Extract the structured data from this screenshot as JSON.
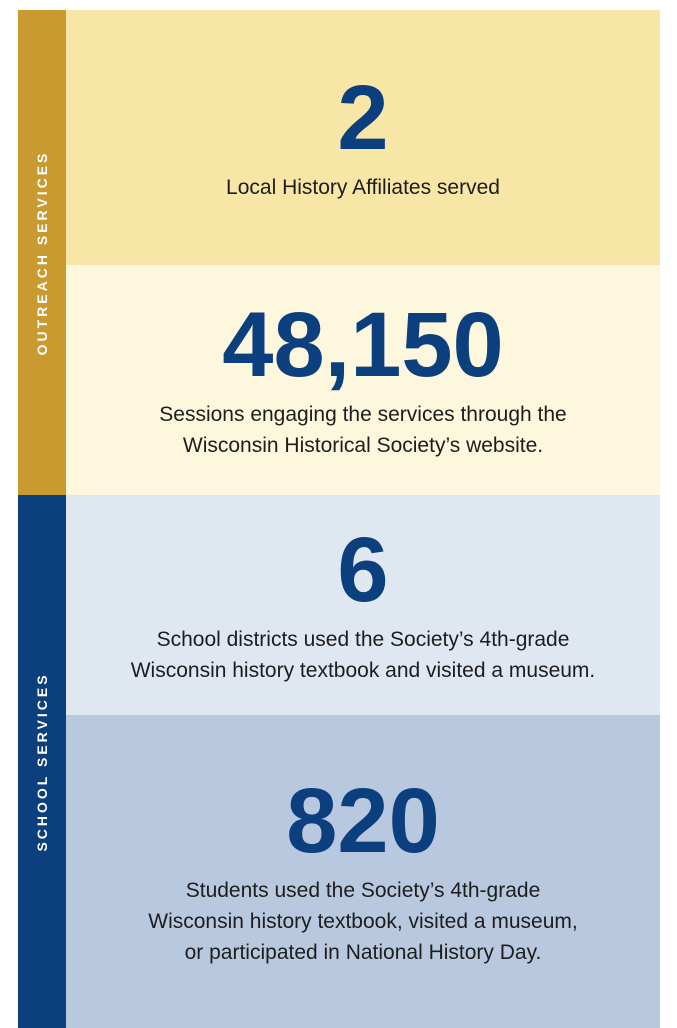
{
  "sections": [
    {
      "label": "OUTREACH SERVICES",
      "stats": [
        {
          "number": "2",
          "lines": [
            "Local History Affiliates served"
          ]
        },
        {
          "number": "48,150",
          "lines": [
            "Sessions engaging the services through the",
            "Wisconsin Historical Society’s website."
          ]
        }
      ]
    },
    {
      "label": "SCHOOL SERVICES",
      "stats": [
        {
          "number": "6",
          "lines": [
            "School districts used the Society’s 4th-grade",
            "Wisconsin history textbook and visited a museum."
          ]
        },
        {
          "number": "820",
          "lines": [
            "Students used the Society’s 4th-grade",
            "Wisconsin history textbook, visited a museum,",
            "or participated in National History Day."
          ]
        }
      ]
    }
  ]
}
